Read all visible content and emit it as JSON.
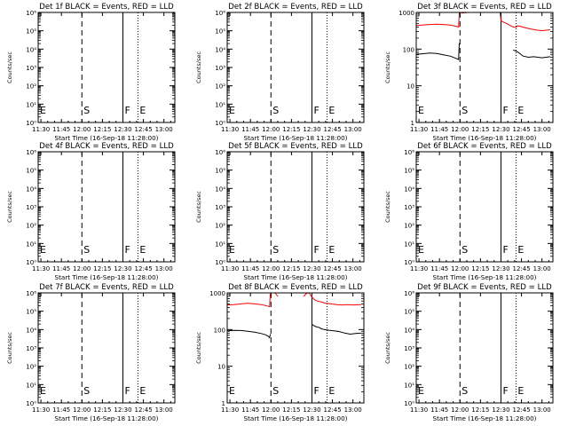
{
  "figure": {
    "xlabel": "Start Time (16-Sep-18 11:28:00)",
    "ylabel": "Counts/sec",
    "time_ticks": [
      "11:30",
      "11:45",
      "12:00",
      "12:15",
      "12:30",
      "12:45",
      "13:00"
    ],
    "tick_minutes": [
      30,
      45,
      60,
      75,
      90,
      105,
      120
    ],
    "xlim_minutes": [
      28,
      128
    ],
    "markers": [
      {
        "label": "E",
        "minute": 28,
        "style": "dotted"
      },
      {
        "label": "S",
        "minute": 60,
        "style": "dashed"
      },
      {
        "label": "F",
        "minute": 90,
        "style": "solid"
      },
      {
        "label": "E",
        "minute": 101,
        "style": "dotted"
      }
    ],
    "colors": {
      "events": "#000000",
      "lld": "#ff0000"
    }
  },
  "chart_data": [
    {
      "type": "line",
      "title": "Det 1f BLACK = Events, RED = LLD",
      "ylog": true,
      "ylim": [
        1,
        1000000
      ],
      "yticks": [
        "10⁰",
        "10¹",
        "10²",
        "10³",
        "10⁴",
        "10⁵",
        "10⁶"
      ],
      "series": []
    },
    {
      "type": "line",
      "title": "Det 2f BLACK = Events, RED = LLD",
      "ylog": true,
      "ylim": [
        1,
        1000000
      ],
      "yticks": [
        "10⁰",
        "10¹",
        "10²",
        "10³",
        "10⁴",
        "10⁵",
        "10⁶"
      ],
      "series": []
    },
    {
      "type": "line",
      "title": "Det 3f BLACK = Events, RED = LLD",
      "ylog": true,
      "ylim": [
        1,
        1000
      ],
      "yticks": [
        "1",
        "10",
        "100",
        "1000"
      ],
      "series": [
        {
          "color": "#000000",
          "x": [
            28,
            33,
            38,
            43,
            48,
            53,
            57,
            59,
            59.5,
            59.7,
            60,
            62,
            66,
            70,
            74,
            78,
            82,
            86,
            89,
            89.7,
            91,
            93,
            96,
            99,
            102,
            104,
            106,
            110,
            114,
            117,
            120,
            123,
            126
          ],
          "y": [
            72,
            75,
            78,
            76,
            70,
            64,
            56,
            52,
            145,
            130,
            null,
            null,
            null,
            null,
            null,
            null,
            null,
            null,
            null,
            null,
            null,
            null,
            null,
            95,
            85,
            75,
            65,
            60,
            62,
            60,
            58,
            60,
            62
          ]
        },
        {
          "color": "#ff0000",
          "x": [
            28,
            33,
            38,
            43,
            48,
            53,
            57,
            59,
            59.5,
            60,
            60.3,
            61,
            66,
            70,
            74,
            78,
            82,
            88,
            89.3,
            90,
            91,
            93,
            95,
            97,
            99,
            101,
            102,
            104,
            108,
            112,
            116,
            120,
            124,
            126
          ],
          "y": [
            440,
            455,
            470,
            480,
            470,
            450,
            420,
            400,
            960,
            980,
            null,
            960,
            1000,
            1000,
            1000,
            1000,
            1000,
            1000,
            1000,
            600,
            560,
            520,
            480,
            430,
            400,
            390,
            430,
            420,
            380,
            350,
            330,
            320,
            330,
            340
          ]
        }
      ]
    },
    {
      "type": "line",
      "title": "Det 4f BLACK = Events, RED = LLD",
      "ylog": true,
      "ylim": [
        1,
        1000000
      ],
      "yticks": [
        "10⁰",
        "10¹",
        "10²",
        "10³",
        "10⁴",
        "10⁵",
        "10⁶"
      ],
      "series": []
    },
    {
      "type": "line",
      "title": "Det 5f BLACK = Events, RED = LLD",
      "ylog": true,
      "ylim": [
        1,
        1000000
      ],
      "yticks": [
        "10⁰",
        "10¹",
        "10²",
        "10³",
        "10⁴",
        "10⁵",
        "10⁶"
      ],
      "series": []
    },
    {
      "type": "line",
      "title": "Det 6f BLACK = Events, RED = LLD",
      "ylog": true,
      "ylim": [
        1,
        1000000
      ],
      "yticks": [
        "10⁰",
        "10¹",
        "10²",
        "10³",
        "10⁴",
        "10⁵",
        "10⁶"
      ],
      "series": []
    },
    {
      "type": "line",
      "title": "Det 7f BLACK = Events, RED = LLD",
      "ylog": true,
      "ylim": [
        1,
        1000000
      ],
      "yticks": [
        "10⁰",
        "10¹",
        "10²",
        "10³",
        "10⁴",
        "10⁵",
        "10⁶"
      ],
      "series": []
    },
    {
      "type": "line",
      "title": "Det 8f BLACK = Events, RED = LLD",
      "ylog": true,
      "ylim": [
        1,
        1000
      ],
      "yticks": [
        "1",
        "10",
        "100",
        "1000"
      ],
      "series": [
        {
          "color": "#000000",
          "x": [
            28,
            33,
            38,
            43,
            48,
            53,
            56,
            58,
            59,
            59.6,
            60,
            89,
            90,
            91,
            93,
            95,
            97,
            99,
            101,
            103,
            106,
            110,
            114,
            118,
            122,
            126
          ],
          "y": [
            92,
            95,
            94,
            90,
            85,
            78,
            72,
            66,
            60,
            75,
            null,
            null,
            140,
            130,
            120,
            115,
            105,
            100,
            98,
            95,
            92,
            88,
            80,
            75,
            78,
            80
          ]
        },
        {
          "color": "#ff0000",
          "x": [
            28,
            33,
            38,
            43,
            48,
            53,
            57,
            59,
            59.5,
            60,
            60.3,
            61,
            63,
            65,
            66,
            82,
            84,
            86,
            88,
            90,
            92,
            94,
            97,
            100,
            104,
            108,
            112,
            116,
            120,
            126
          ],
          "y": [
            470,
            480,
            500,
            520,
            500,
            480,
            440,
            420,
            900,
            1000,
            null,
            1000,
            1000,
            800,
            null,
            null,
            800,
            980,
            1000,
            760,
            640,
            600,
            560,
            520,
            500,
            480,
            470,
            480,
            470,
            480
          ]
        }
      ]
    },
    {
      "type": "line",
      "title": "Det 9f BLACK = Events, RED = LLD",
      "ylog": true,
      "ylim": [
        1,
        1000000
      ],
      "yticks": [
        "10⁰",
        "10¹",
        "10²",
        "10³",
        "10⁴",
        "10⁵",
        "10⁶"
      ],
      "series": []
    }
  ]
}
